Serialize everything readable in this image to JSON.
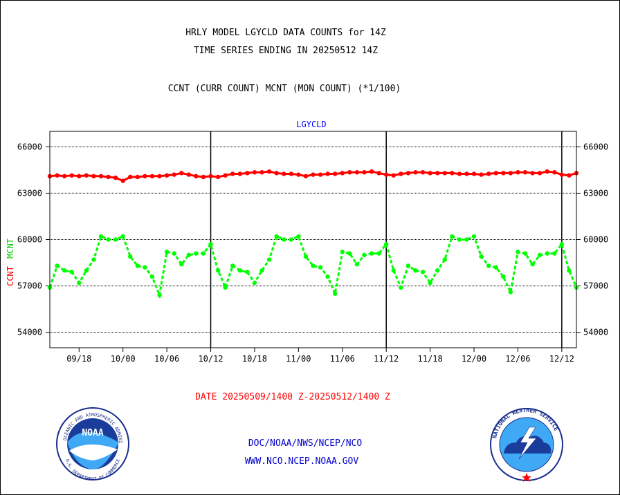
{
  "chart_data": {
    "type": "line",
    "title": [
      "HRLY MODEL LGYCLD DATA COUNTS for 14Z",
      "TIME SERIES ENDING IN 20250512 14Z"
    ],
    "subtitle": "CCNT (CURR COUNT) MCNT (MON COUNT) (*1/100)",
    "panel_label": "LGYCLD",
    "ylabel": [
      "CCNT",
      "MCNT"
    ],
    "xlabel": "DATE 20250509/1400 Z-20250512/1400 Z",
    "ylim": [
      53000,
      67000
    ],
    "yticks": [
      54000,
      57000,
      60000,
      63000,
      66000
    ],
    "ytick_labels": [
      "54000",
      "57000",
      "60000",
      "63000",
      "66000"
    ],
    "x_count": 73,
    "xticks": [
      {
        "i": 4,
        "label": "09/18"
      },
      {
        "i": 10,
        "label": "10/00"
      },
      {
        "i": 16,
        "label": "10/06"
      },
      {
        "i": 22,
        "label": "10/12"
      },
      {
        "i": 28,
        "label": "10/18"
      },
      {
        "i": 34,
        "label": "11/00"
      },
      {
        "i": 40,
        "label": "11/06"
      },
      {
        "i": 46,
        "label": "11/12"
      },
      {
        "i": 52,
        "label": "11/18"
      },
      {
        "i": 58,
        "label": "12/00"
      },
      {
        "i": 64,
        "label": "12/06"
      },
      {
        "i": 70,
        "label": "12/12"
      }
    ],
    "day_boundaries": [
      22,
      46,
      70
    ],
    "grid": true,
    "series": [
      {
        "name": "CCNT",
        "color": "#ff0000",
        "style": "solid",
        "values": [
          64100,
          64150,
          64100,
          64150,
          64100,
          64150,
          64100,
          64100,
          64050,
          64000,
          63800,
          64050,
          64050,
          64100,
          64100,
          64100,
          64150,
          64200,
          64300,
          64200,
          64100,
          64050,
          64100,
          64050,
          64150,
          64250,
          64250,
          64300,
          64350,
          64350,
          64400,
          64300,
          64250,
          64250,
          64200,
          64100,
          64200,
          64200,
          64250,
          64250,
          64300,
          64350,
          64350,
          64350,
          64400,
          64300,
          64200,
          64150,
          64250,
          64300,
          64350,
          64350,
          64300,
          64300,
          64300,
          64300,
          64250,
          64250,
          64250,
          64200,
          64250,
          64300,
          64300,
          64300,
          64350,
          64350,
          64300,
          64300,
          64400,
          64350,
          64200,
          64150,
          64300
        ]
      },
      {
        "name": "MCNT",
        "color": "#00ff00",
        "style": "dashed",
        "values": [
          56900,
          58300,
          58000,
          57900,
          57200,
          58000,
          58700,
          60200,
          60000,
          60000,
          60200,
          58900,
          58300,
          58200,
          57600,
          56400,
          59200,
          59100,
          58400,
          59000,
          59100,
          59100,
          59700,
          58000,
          56900,
          58300,
          58000,
          57900,
          57200,
          58000,
          58700,
          60200,
          60000,
          60000,
          60200,
          58900,
          58300,
          58200,
          57600,
          56500,
          59200,
          59100,
          58400,
          59000,
          59100,
          59100,
          59700,
          58000,
          56900,
          58300,
          58000,
          57900,
          57200,
          58000,
          58700,
          60200,
          60000,
          60000,
          60200,
          58900,
          58300,
          58200,
          57600,
          56600,
          59200,
          59100,
          58400,
          59000,
          59100,
          59100,
          59700,
          58000,
          56900
        ]
      }
    ]
  },
  "footer": {
    "line1": "DOC/NOAA/NWS/NCEP/NCO",
    "line2": "WWW.NCO.NCEP.NOAA.GOV"
  },
  "logos": {
    "noaa_text": "NOAA",
    "noaa_ring": "NATIONAL OCEANIC AND ATMOSPHERIC ADMINISTRATION",
    "noaa_ring_bottom": "U.S. DEPARTMENT OF COMMERCE",
    "nws_ring": "NATIONAL WEATHER SERVICE"
  },
  "colors": {
    "title": "#000000",
    "panel_label": "#0000ff",
    "xlabel": "#ff0000",
    "footer": "#0000cc",
    "ccnt": "#ff0000",
    "mcnt": "#00ff00"
  }
}
